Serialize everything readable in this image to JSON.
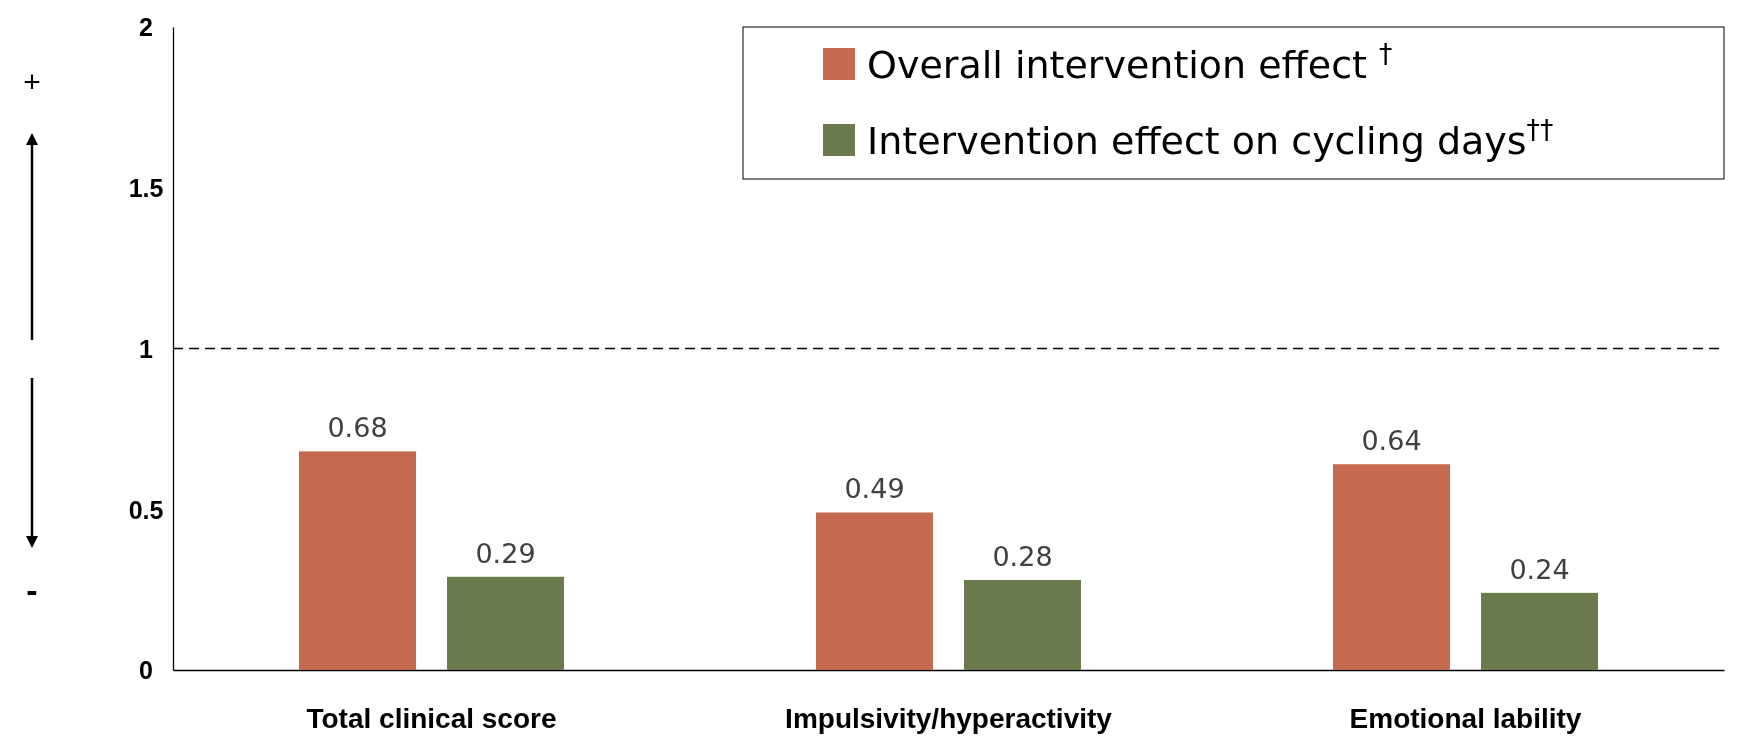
{
  "chart_data": {
    "type": "bar",
    "categories": [
      "Total clinical score",
      "Impulsivity/hyperactivity",
      "Emotional lability"
    ],
    "series": [
      {
        "name": "Overall intervention effect $^{†}$",
        "color": "#c5694f",
        "values": [
          0.68,
          0.49,
          0.64
        ]
      },
      {
        "name": "Intervention effect on cycling days$^{††}$",
        "color": "#6b7a4c",
        "values": [
          0.29,
          0.28,
          0.24
        ]
      }
    ],
    "ylim": [
      0,
      2
    ],
    "yticks": [
      0,
      {
        "value": 0.5,
        "label": "0.5"
      },
      1,
      {
        "value": 1.5,
        "label": "1.5"
      },
      2
    ],
    "data_labels": true,
    "grid": false,
    "legend": "top right",
    "ref_lines": [
      {
        "axis": "y",
        "value": 1,
        "color": "#000000",
        "line_style": "dashed"
      }
    ],
    "annotations": [
      "+",
      "-"
    ]
  }
}
